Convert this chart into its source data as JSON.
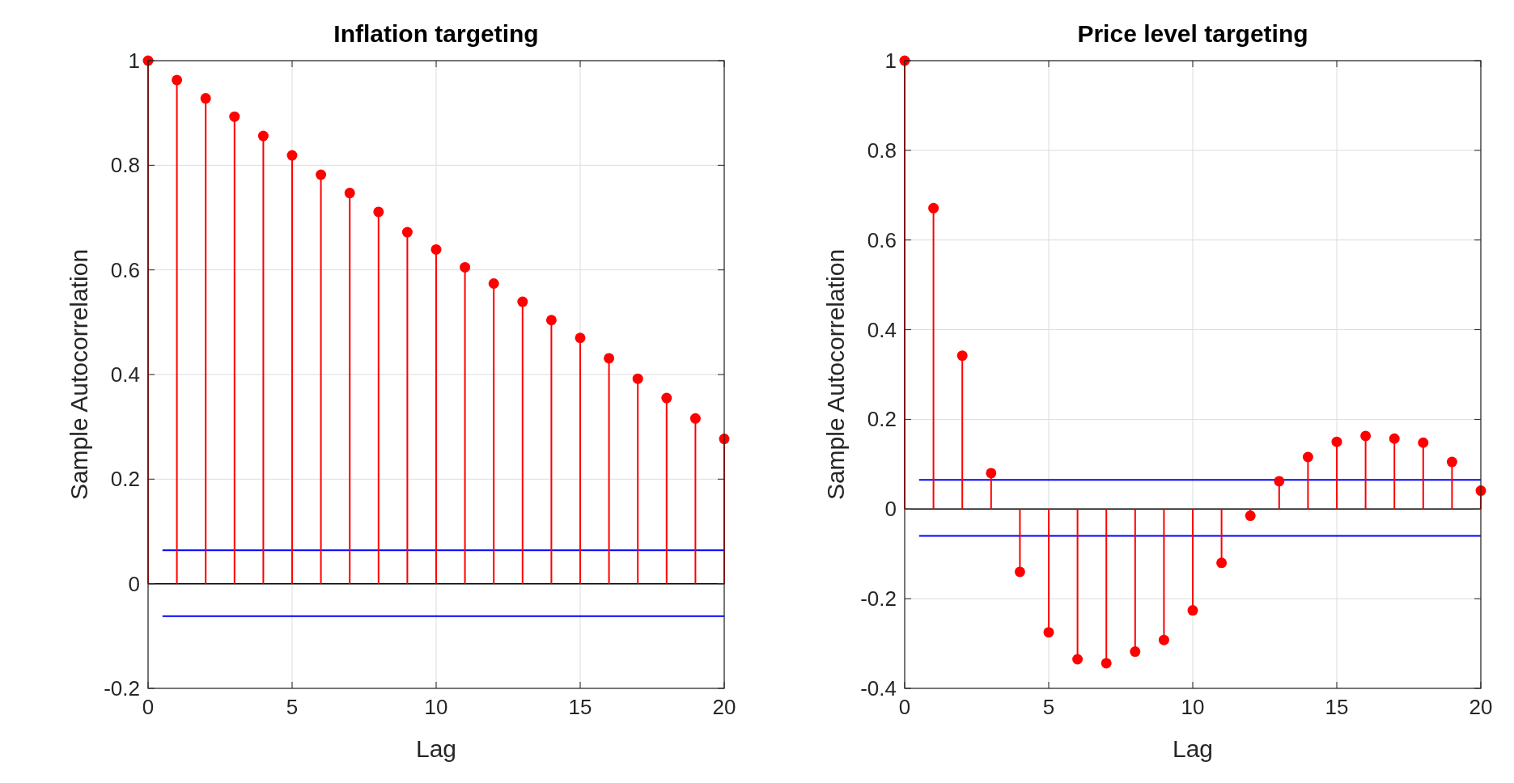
{
  "chart_data": [
    {
      "type": "lollipop",
      "title": "Inflation targeting",
      "xlabel": "Lag",
      "ylabel": "Sample Autocorrelation",
      "x": [
        0,
        1,
        2,
        3,
        4,
        5,
        6,
        7,
        8,
        9,
        10,
        11,
        12,
        13,
        14,
        15,
        16,
        17,
        18,
        19,
        20
      ],
      "xlim": [
        0,
        20
      ],
      "xticks": [
        0,
        5,
        10,
        15,
        20
      ],
      "ylim": [
        -0.2,
        1
      ],
      "yticks": [
        -0.2,
        0,
        0.2,
        0.4,
        0.6,
        0.8,
        1
      ],
      "grid": true,
      "marker": "circle",
      "series": [
        {
          "color": "#ff0000",
          "values": [
            1,
            0.963,
            0.928,
            0.893,
            0.856,
            0.819,
            0.782,
            0.747,
            0.711,
            0.672,
            0.639,
            0.605,
            0.574,
            0.539,
            0.504,
            0.47,
            0.431,
            0.392,
            0.355,
            0.316,
            0.277
          ]
        }
      ],
      "ref_lines": [
        {
          "axis": "y",
          "value": 0.064,
          "color": "#0000ff"
        },
        {
          "axis": "y",
          "value": -0.062,
          "color": "#0000ff"
        }
      ]
    },
    {
      "type": "lollipop",
      "title": "Price level targeting",
      "xlabel": "Lag",
      "ylabel": "Sample Autocorrelation",
      "x": [
        0,
        1,
        2,
        3,
        4,
        5,
        6,
        7,
        8,
        9,
        10,
        11,
        12,
        13,
        14,
        15,
        16,
        17,
        18,
        19,
        20
      ],
      "xlim": [
        0,
        20
      ],
      "xticks": [
        0,
        5,
        10,
        15,
        20
      ],
      "ylim": [
        -0.4,
        1
      ],
      "yticks": [
        -0.4,
        -0.2,
        0,
        0.2,
        0.4,
        0.6,
        0.8,
        1
      ],
      "grid": true,
      "marker": "circle",
      "series": [
        {
          "color": "#ff0000",
          "values": [
            1,
            0.671,
            0.342,
            0.08,
            -0.14,
            -0.275,
            -0.335,
            -0.344,
            -0.318,
            -0.292,
            -0.226,
            -0.12,
            -0.015,
            0.062,
            0.116,
            0.15,
            0.163,
            0.157,
            0.148,
            0.105,
            0.041
          ]
        }
      ],
      "ref_lines": [
        {
          "axis": "y",
          "value": 0.065,
          "color": "#0000ff"
        },
        {
          "axis": "y",
          "value": -0.06,
          "color": "#0000ff"
        }
      ]
    }
  ]
}
